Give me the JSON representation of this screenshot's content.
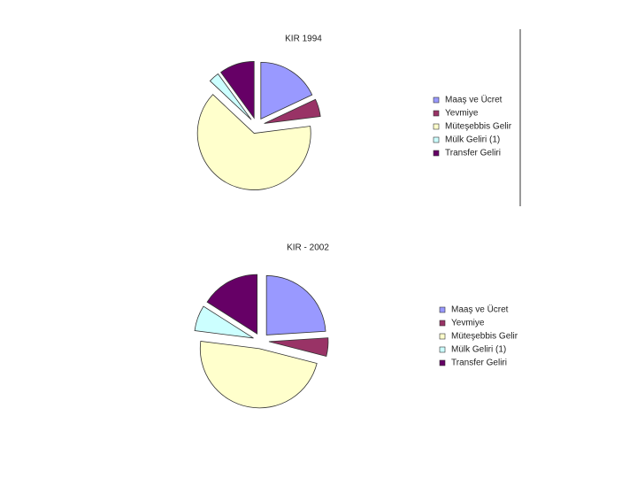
{
  "chart_data": [
    {
      "type": "pie",
      "title": "KIR 1994",
      "categories": [
        "Maaş ve Ücret",
        "Yevmiye",
        "Müteşebbis Gelir",
        "Mülk Geliri (1)",
        "Transfer Geliri"
      ],
      "values": [
        18,
        5,
        64,
        3,
        10
      ],
      "colors": [
        "#9999ff",
        "#993366",
        "#ffffcc",
        "#ccffff",
        "#660066"
      ]
    },
    {
      "type": "pie",
      "title": "KIR - 2002",
      "categories": [
        "Maaş ve Ücret",
        "Yevmiye",
        "Müteşebbis Gelir",
        "Mülk Geliri (1)",
        "Transfer Geliri"
      ],
      "values": [
        24,
        5,
        48,
        7,
        16
      ],
      "colors": [
        "#9999ff",
        "#993366",
        "#ffffcc",
        "#ccffff",
        "#660066"
      ]
    }
  ]
}
